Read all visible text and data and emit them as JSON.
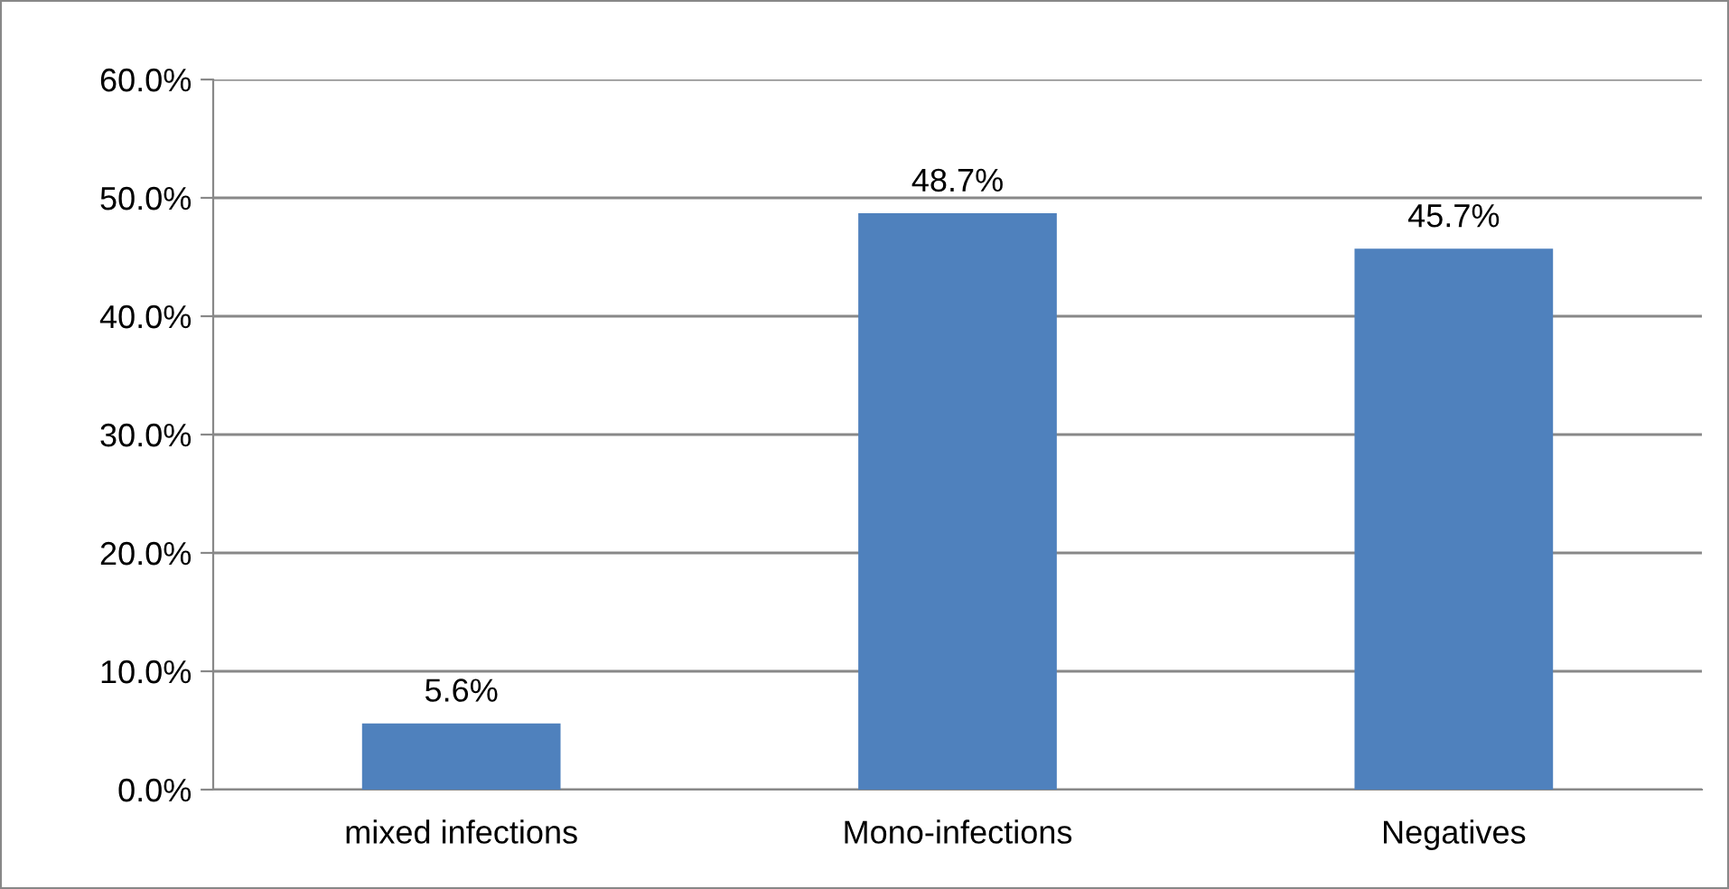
{
  "chart_data": {
    "type": "bar",
    "categories": [
      "mixed infections",
      "Mono-infections",
      "Negatives"
    ],
    "values": [
      5.6,
      48.7,
      45.7
    ],
    "value_labels": [
      "5.6%",
      "48.7%",
      "45.7%"
    ],
    "color": "#4f81bd",
    "ylim": [
      0,
      60
    ],
    "yticks": [
      {
        "value": 0,
        "label": "0.0%"
      },
      {
        "value": 10,
        "label": "10.0%"
      },
      {
        "value": 20,
        "label": "20.0%"
      },
      {
        "value": 30,
        "label": "30.0%"
      },
      {
        "value": 40,
        "label": "40.0%"
      },
      {
        "value": 50,
        "label": "50.0%"
      },
      {
        "value": 60,
        "label": "60.0%"
      }
    ],
    "grid": "y",
    "legend": false
  }
}
